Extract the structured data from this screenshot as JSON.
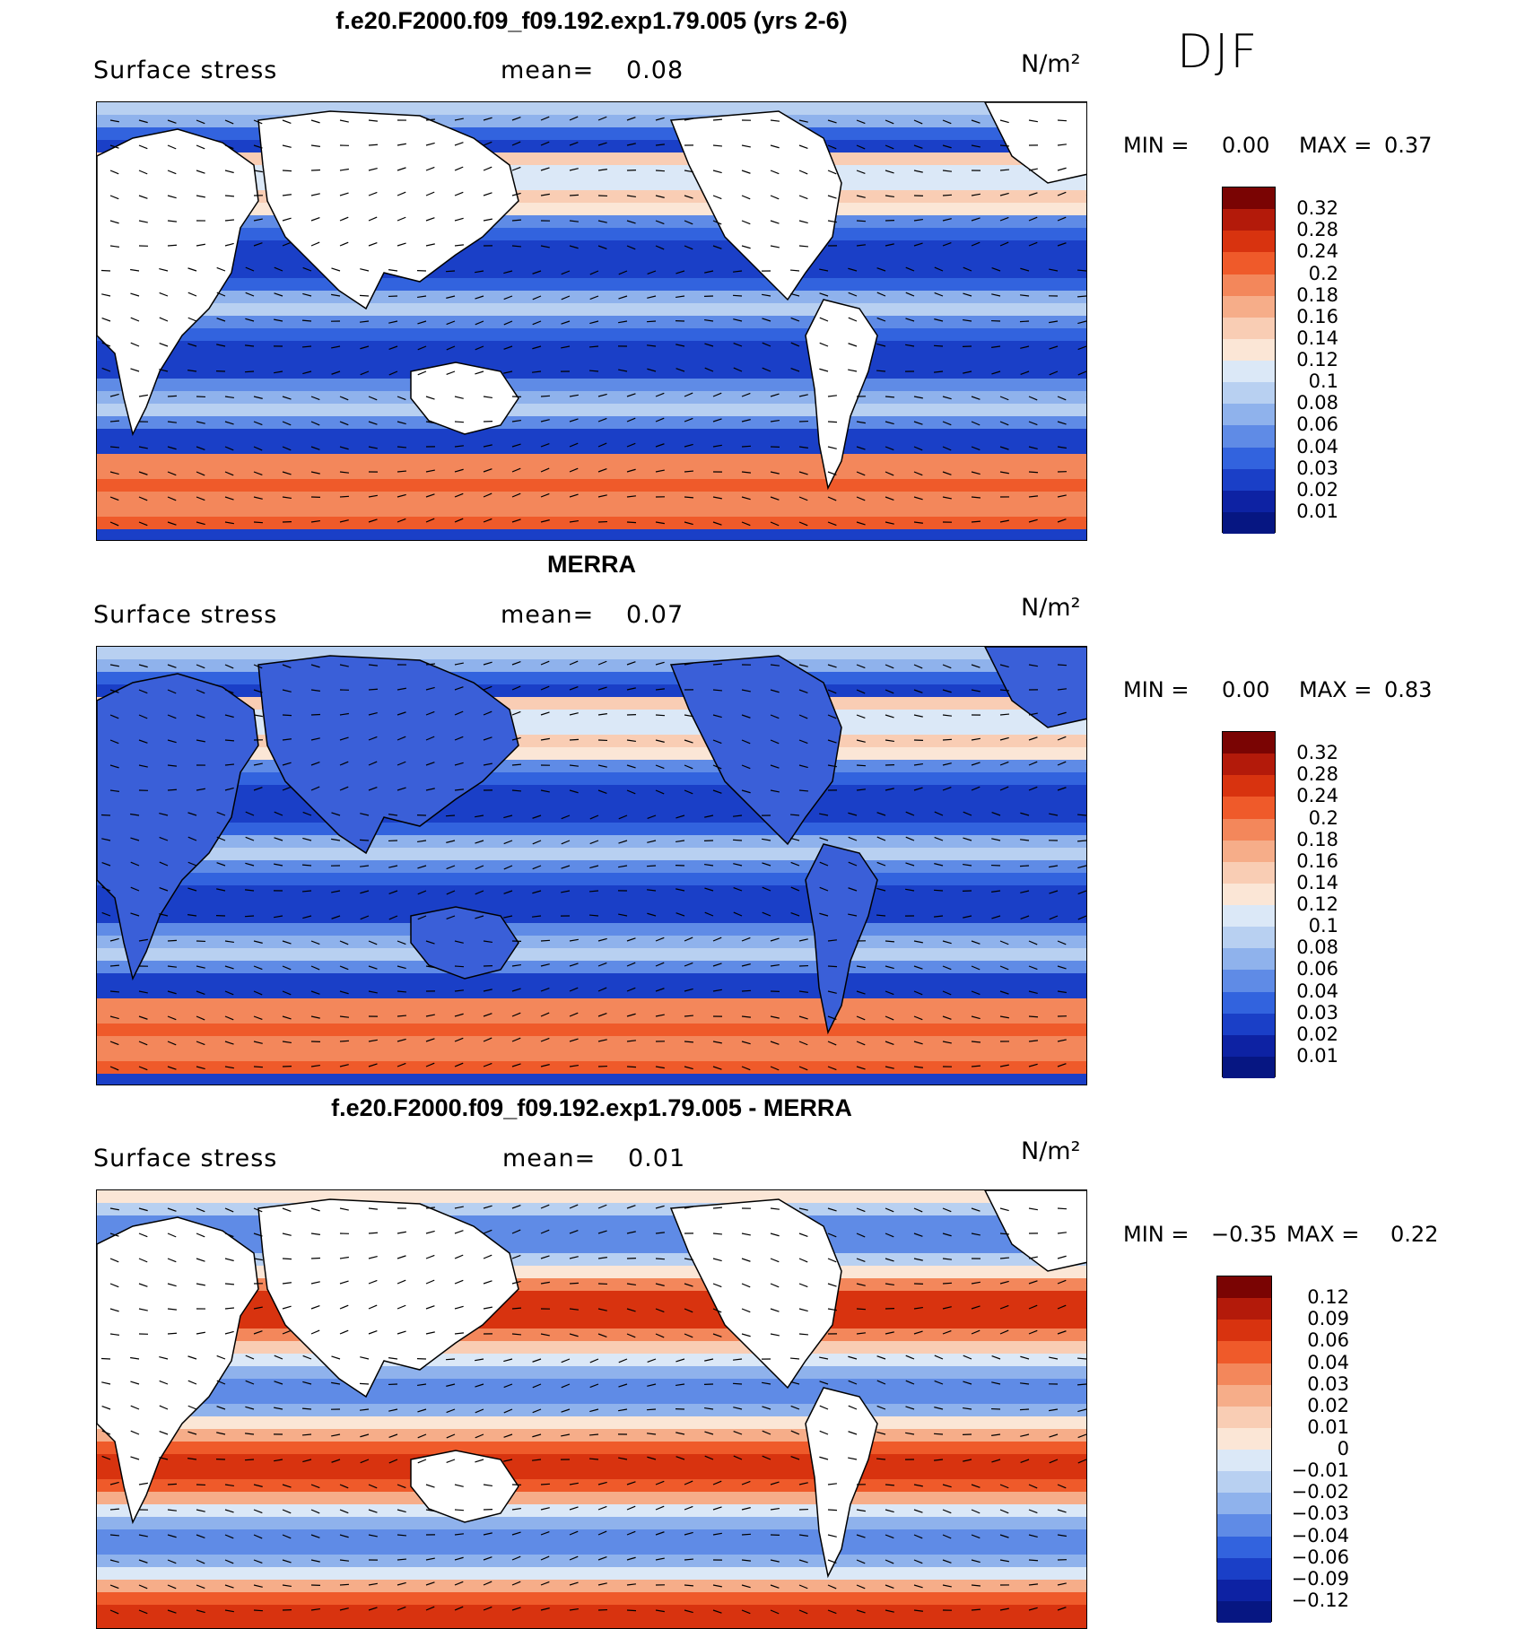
{
  "season": "DJF",
  "panels": [
    {
      "title": "f.e20.F2000.f09_f09.192.exp1.79.005 (yrs 2-6)",
      "variable": "Surface stress",
      "mean_label": "mean=",
      "mean_value": "0.08",
      "units": "N/m²",
      "min_label": "MIN =",
      "min_value": "0.00",
      "max_label": "MAX =",
      "max_value": "0.37",
      "colorbar": [
        "0.32",
        "0.28",
        "0.24",
        "0.2",
        "0.18",
        "0.16",
        "0.14",
        "0.12",
        "0.1",
        "0.08",
        "0.06",
        "0.04",
        "0.03",
        "0.02",
        "0.01"
      ]
    },
    {
      "title": "MERRA",
      "variable": "Surface stress",
      "mean_label": "mean=",
      "mean_value": "0.07",
      "units": "N/m²",
      "min_label": "MIN =",
      "min_value": "0.00",
      "max_label": "MAX =",
      "max_value": "0.83",
      "colorbar": [
        "0.32",
        "0.28",
        "0.24",
        "0.2",
        "0.18",
        "0.16",
        "0.14",
        "0.12",
        "0.1",
        "0.08",
        "0.06",
        "0.04",
        "0.03",
        "0.02",
        "0.01"
      ]
    },
    {
      "title": "f.e20.F2000.f09_f09.192.exp1.79.005 - MERRA",
      "variable": "Surface stress",
      "mean_label": "mean=",
      "mean_value": "0.01",
      "units": "N/m²",
      "min_label": "MIN =",
      "min_value": "−0.35",
      "max_label": "MAX =",
      "max_value": "0.22",
      "colorbar": [
        "0.12",
        "0.09",
        "0.06",
        "0.04",
        "0.03",
        "0.02",
        "0.01",
        "0",
        "−0.01",
        "−0.02",
        "−0.03",
        "−0.04",
        "−0.06",
        "−0.09",
        "−0.12"
      ]
    }
  ],
  "colors": {
    "scale": [
      "#7a0403",
      "#b31a0a",
      "#d8330f",
      "#ef5a2a",
      "#f3875b",
      "#f6ad89",
      "#f9cdb4",
      "#fbe6d6",
      "#dbe8f7",
      "#b8d0f1",
      "#8fb2ec",
      "#5f8be6",
      "#3263de",
      "#1a3fc7",
      "#0d22a3",
      "#061682"
    ]
  }
}
